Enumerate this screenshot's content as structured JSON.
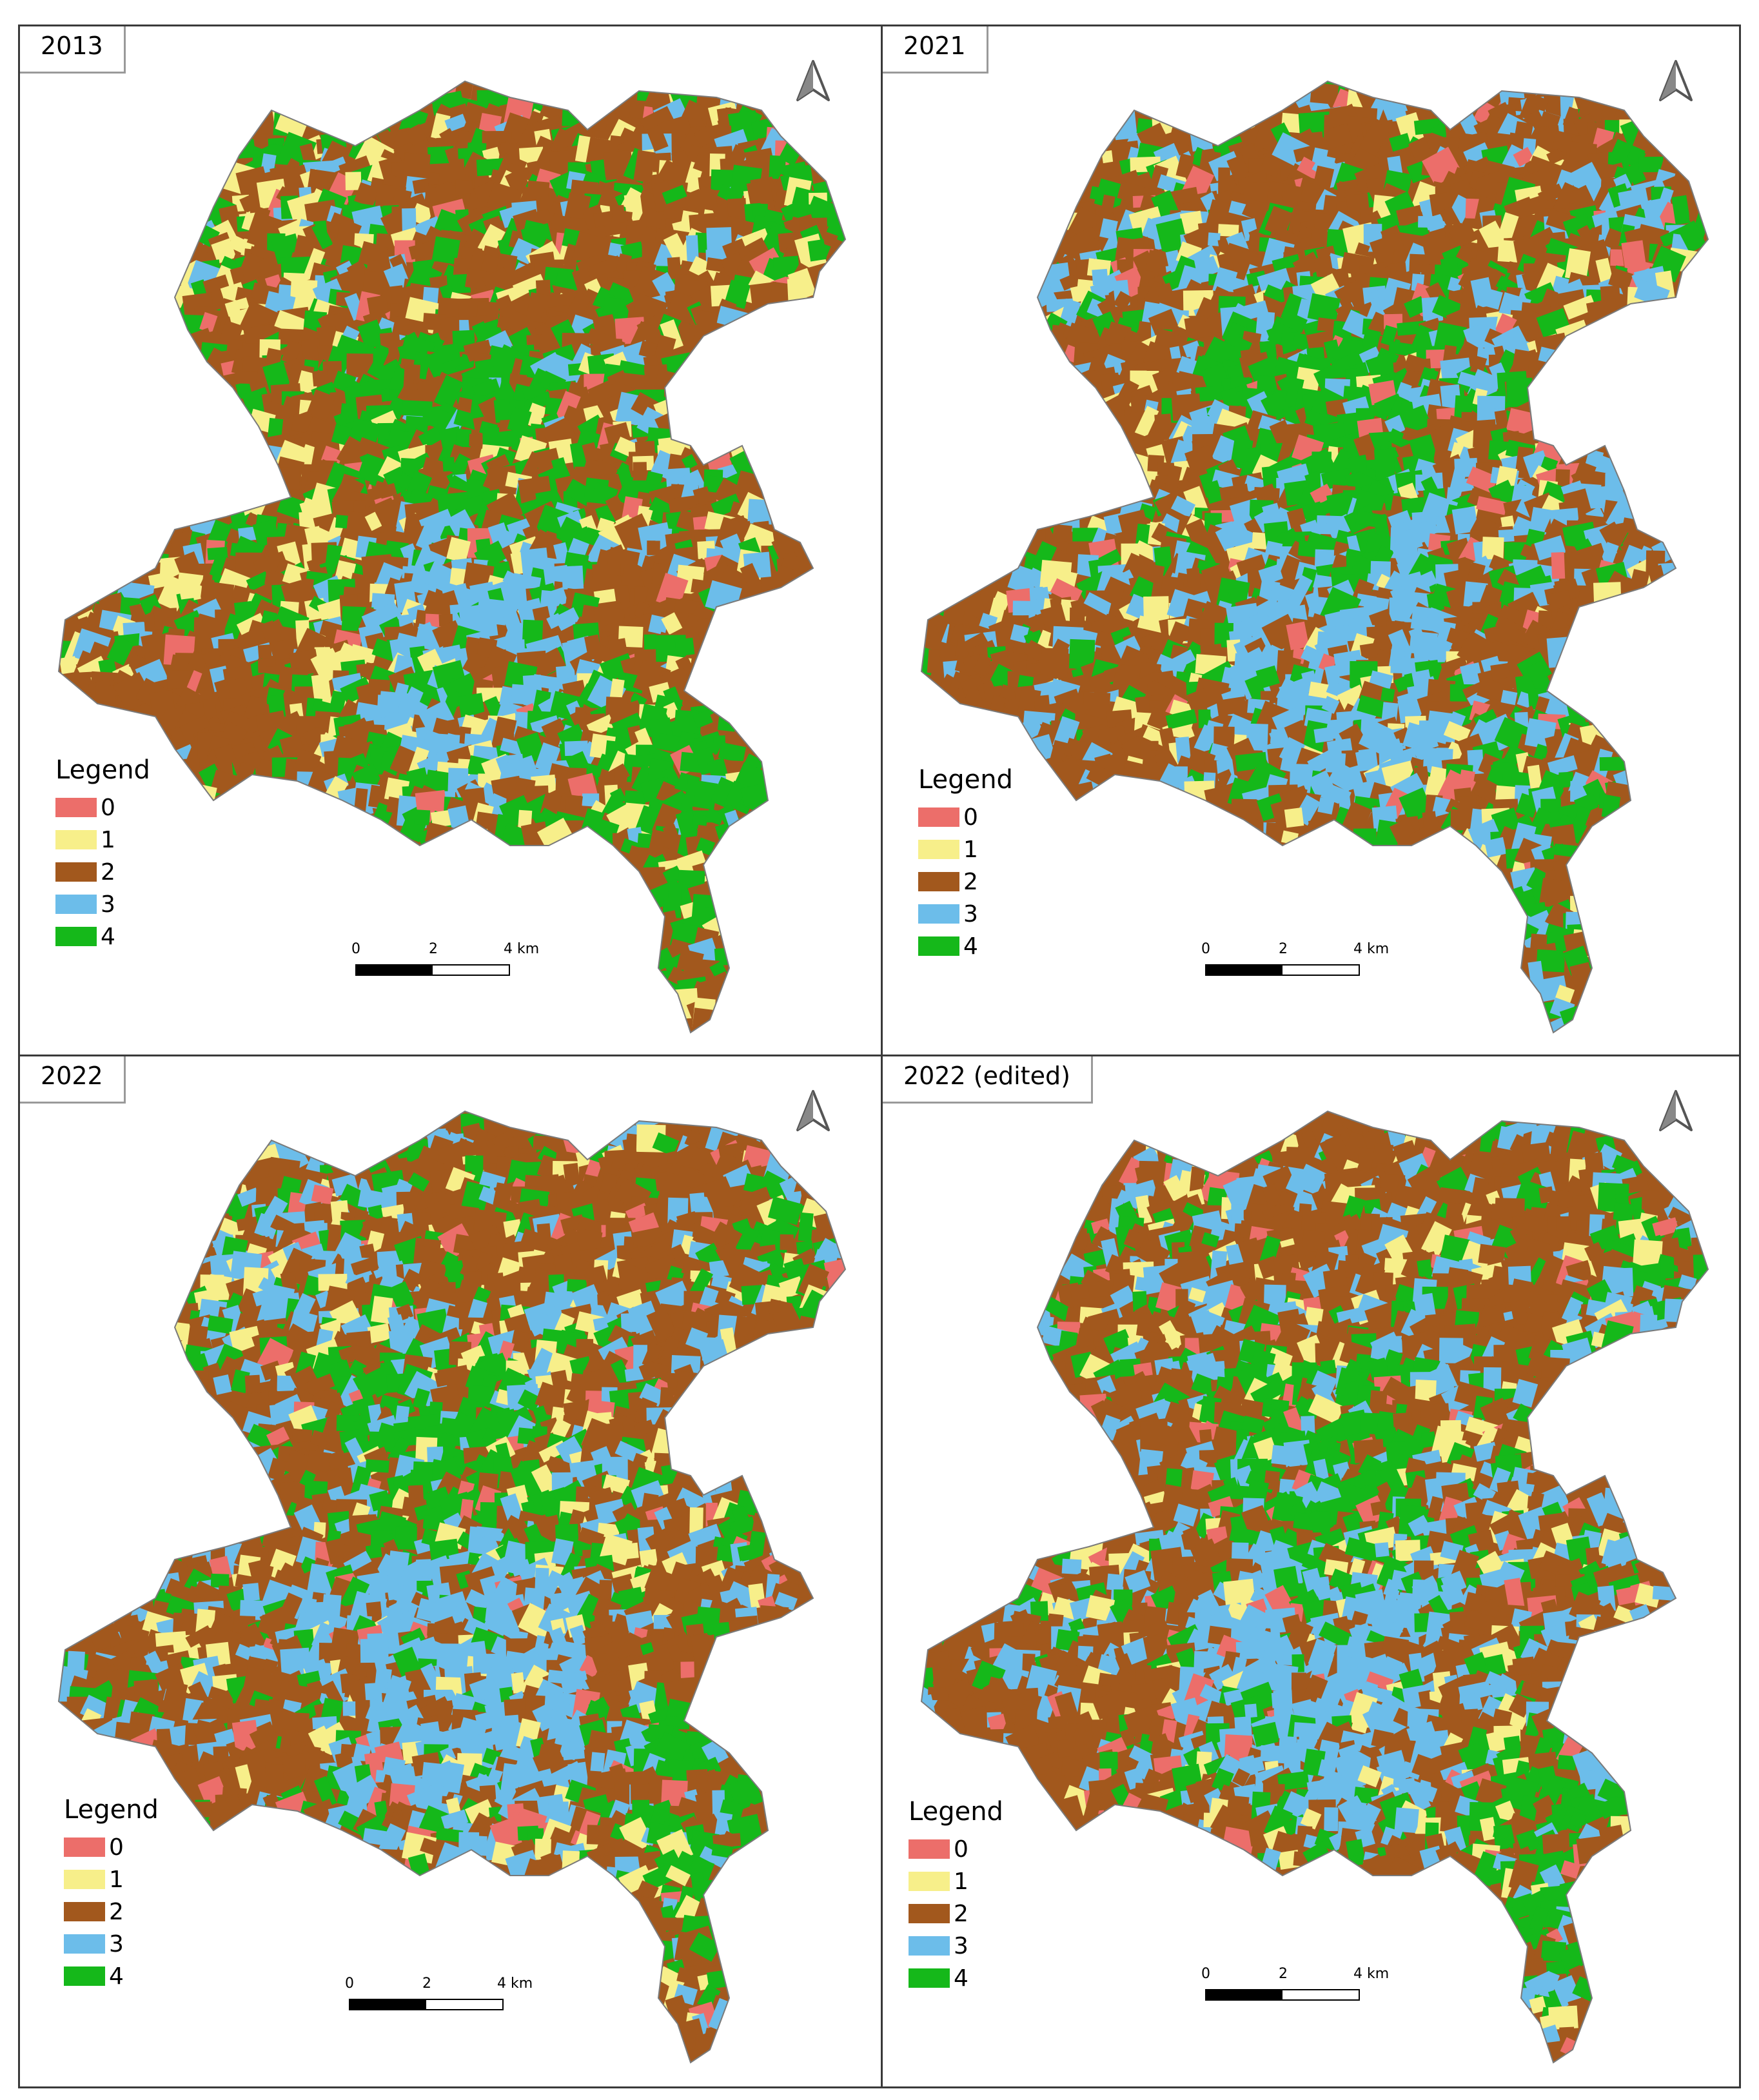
{
  "colors": {
    "class_0": "#ec6e6a",
    "class_1": "#f7ef8a",
    "class_2": "#a2581d",
    "class_3": "#6cbdea",
    "class_4": "#15b81a"
  },
  "north_arrow": {
    "icon": "north-arrow-icon"
  },
  "legend": {
    "title": "Legend",
    "items": [
      {
        "label": "0",
        "color": "#ec6e6a"
      },
      {
        "label": "1",
        "color": "#f7ef8a"
      },
      {
        "label": "2",
        "color": "#a2581d"
      },
      {
        "label": "3",
        "color": "#6cbdea"
      },
      {
        "label": "4",
        "color": "#15b81a"
      }
    ]
  },
  "scalebar": {
    "t0": "0",
    "t2": "2",
    "t4": "4 km"
  },
  "panels": [
    {
      "title": "2013",
      "mix": {
        "c0": 0.03,
        "c1": 0.14,
        "c2": 0.45,
        "c3": 0.1,
        "c4": 0.28
      }
    },
    {
      "title": "2021",
      "mix": {
        "c0": 0.05,
        "c1": 0.1,
        "c2": 0.42,
        "c3": 0.24,
        "c4": 0.19
      }
    },
    {
      "title": "2022",
      "mix": {
        "c0": 0.06,
        "c1": 0.1,
        "c2": 0.42,
        "c3": 0.25,
        "c4": 0.17
      }
    },
    {
      "title": "2022 (edited)",
      "mix": {
        "c0": 0.06,
        "c1": 0.1,
        "c2": 0.41,
        "c3": 0.25,
        "c4": 0.18
      }
    }
  ]
}
